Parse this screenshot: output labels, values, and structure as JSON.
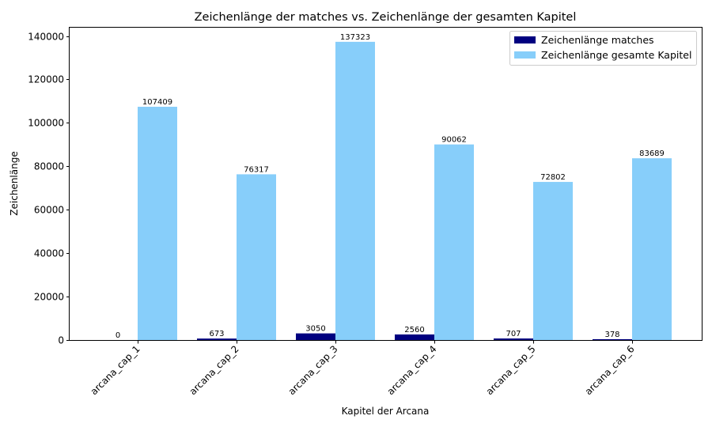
{
  "chart_data": {
    "type": "bar",
    "title": "Zeichenlänge der matches vs. Zeichenlänge der gesamten Kapitel",
    "xlabel": "Kapitel der Arcana",
    "ylabel": "Zeichenlänge",
    "categories": [
      "arcana_cap_1",
      "arcana_cap_2",
      "arcana_cap_3",
      "arcana_cap_4",
      "arcana_cap_5",
      "arcana_cap_6"
    ],
    "series": [
      {
        "name": "Zeichenlänge matches",
        "color": "#000080",
        "values": [
          0,
          673,
          3050,
          2560,
          707,
          378
        ]
      },
      {
        "name": "Zeichenlänge gesamte Kapitel",
        "color": "#87CEFA",
        "values": [
          107409,
          76317,
          137323,
          90062,
          72802,
          83689
        ]
      }
    ],
    "ylim": [
      0,
      144195
    ],
    "yticks": [
      0,
      20000,
      40000,
      60000,
      80000,
      100000,
      120000,
      140000
    ],
    "ytick_labels": [
      "0",
      "20000",
      "40000",
      "60000",
      "80000",
      "100000",
      "120000",
      "140000"
    ],
    "grid": false,
    "legend_position": "top-right",
    "x_tick_rotation": "45-degrees"
  }
}
